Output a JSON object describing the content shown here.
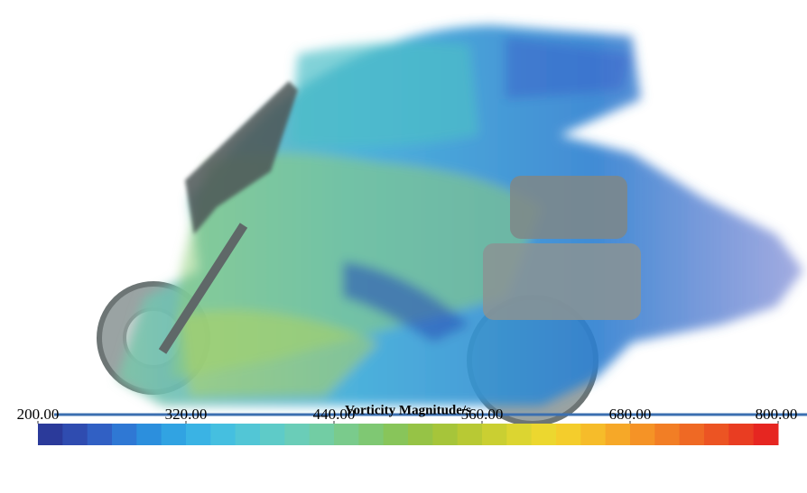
{
  "colorbar": {
    "title": "Vorticity Magnitude/s",
    "lim": [
      200,
      800
    ],
    "ticks": [
      {
        "value": 200,
        "label": "200.00"
      },
      {
        "value": 320,
        "label": "320.00"
      },
      {
        "value": 440,
        "label": "440.00"
      },
      {
        "value": 560,
        "label": "560.00"
      },
      {
        "value": 680,
        "label": "680.00"
      },
      {
        "value": 800,
        "label": "800.00"
      }
    ]
  }
}
